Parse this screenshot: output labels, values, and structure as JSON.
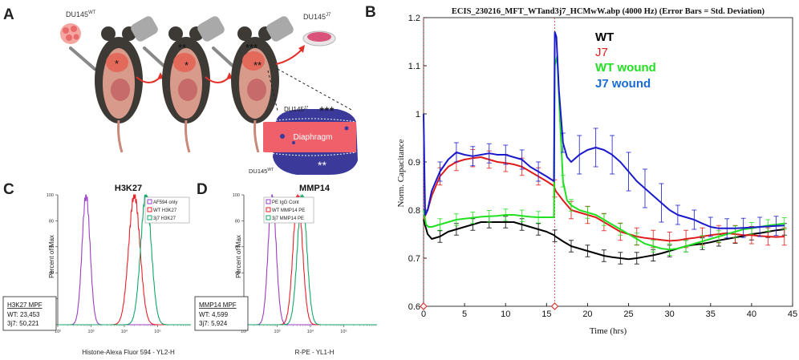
{
  "panels": {
    "a": {
      "letter": "A",
      "label_wt": "DU145",
      "label_wt_sup": "WT",
      "label_j7": "DU145",
      "label_j7_sup": "J7",
      "stars_1": "*",
      "stars_2": "**",
      "stars_2b": "*",
      "stars_3": "***",
      "stars_3b": "**",
      "inset_top_label": "DU145",
      "inset_top_sup": "J7",
      "inset_top_stars": "***",
      "inset_bottom_label": "DU145",
      "inset_bottom_sup": "WT",
      "inset_bottom_stars": "**",
      "inset_diaphragm": "Diaphragm"
    },
    "b": {
      "letter": "B"
    },
    "c": {
      "letter": "C"
    },
    "d": {
      "letter": "D"
    }
  },
  "colors": {
    "wt": "#000000",
    "j7": "#e01b1b",
    "wt_wound": "#22e022",
    "j7_wound": "#1a1acc",
    "c_af594": "#9b3fc4",
    "c_wt": "#e8202a",
    "c_3j7": "#12a86a",
    "arrow": "#e0312a"
  },
  "chart_data": [
    {
      "id": "ecis",
      "type": "line",
      "title": "ECIS_230216_MFT_WTand3j7_HCMwW.abp (4000 Hz) (Error Bars = Std. Deviation)",
      "xlabel": "Time (hrs)",
      "ylabel": "Norm. Capacitance",
      "xlim": [
        0,
        45
      ],
      "ylim": [
        0.6,
        1.2
      ],
      "xticks": [
        0,
        5,
        10,
        15,
        20,
        25,
        30,
        35,
        40,
        45
      ],
      "yticks": [
        0.6,
        0.7,
        0.8,
        0.9,
        1,
        1.1,
        1.2
      ],
      "ytick_labels": [
        "0.6",
        "0.7",
        "0.8",
        "0.9",
        "1",
        "1.1",
        "1.2"
      ],
      "markers_x": [
        0,
        16
      ],
      "legend": [
        "WT",
        "J7",
        "WT wound",
        "J7 wound"
      ],
      "series": [
        {
          "name": "WT",
          "color_key": "wt",
          "x": [
            0,
            0.5,
            1,
            2,
            3,
            4,
            5,
            6,
            7,
            8,
            9,
            10,
            11,
            12,
            13,
            14,
            15,
            15.9,
            16.1,
            17,
            18,
            19,
            20,
            21,
            22,
            23,
            24,
            25,
            26,
            27,
            28,
            29,
            30,
            31,
            32,
            33,
            34,
            35,
            36,
            37,
            38,
            39,
            40,
            41,
            42,
            43,
            44
          ],
          "y": [
            0.78,
            0.75,
            0.74,
            0.745,
            0.755,
            0.76,
            0.765,
            0.77,
            0.775,
            0.775,
            0.775,
            0.775,
            0.775,
            0.77,
            0.765,
            0.76,
            0.755,
            0.748,
            0.745,
            0.735,
            0.725,
            0.72,
            0.715,
            0.71,
            0.705,
            0.702,
            0.7,
            0.698,
            0.7,
            0.703,
            0.706,
            0.71,
            0.715,
            0.72,
            0.725,
            0.728,
            0.73,
            0.733,
            0.737,
            0.74,
            0.743,
            0.746,
            0.75,
            0.752,
            0.755,
            0.758,
            0.76
          ],
          "err_x": [
            2,
            4,
            6,
            8,
            10,
            12,
            14,
            16,
            18,
            20,
            22,
            24,
            26,
            28,
            30,
            32,
            34,
            36,
            38,
            40,
            42,
            44
          ],
          "err": 0.012
        },
        {
          "name": "J7",
          "color_key": "j7",
          "x": [
            0,
            0.5,
            1,
            2,
            3,
            4,
            5,
            6,
            7,
            8,
            9,
            10,
            11,
            12,
            13,
            14,
            15,
            15.9,
            16.1,
            17,
            18,
            19,
            20,
            21,
            22,
            23,
            24,
            25,
            26,
            27,
            28,
            29,
            30,
            31,
            32,
            33,
            34,
            35,
            36,
            37,
            38,
            39,
            40,
            41,
            42,
            43,
            44
          ],
          "y": [
            0.78,
            0.8,
            0.83,
            0.87,
            0.89,
            0.9,
            0.905,
            0.908,
            0.91,
            0.905,
            0.9,
            0.898,
            0.895,
            0.89,
            0.88,
            0.87,
            0.86,
            0.85,
            0.84,
            0.82,
            0.8,
            0.795,
            0.79,
            0.785,
            0.775,
            0.765,
            0.755,
            0.75,
            0.745,
            0.742,
            0.74,
            0.738,
            0.736,
            0.737,
            0.74,
            0.742,
            0.745,
            0.748,
            0.75,
            0.752,
            0.75,
            0.748,
            0.748,
            0.746,
            0.745,
            0.744,
            0.745
          ],
          "err_x": [
            2,
            4,
            6,
            8,
            10,
            12,
            14,
            16,
            18,
            20,
            22,
            24,
            26,
            28,
            30,
            32,
            34,
            36,
            38,
            40,
            42,
            44
          ],
          "err": 0.018
        },
        {
          "name": "WT wound",
          "color_key": "wt_wound",
          "x": [
            0,
            0.3,
            0.6,
            1,
            2,
            3,
            4,
            5,
            6,
            7,
            8,
            9,
            10,
            11,
            12,
            13,
            14,
            15,
            15.9,
            16,
            16.3,
            16.6,
            17,
            17.5,
            18,
            19,
            20,
            21,
            22,
            23,
            24,
            25,
            26,
            27,
            28,
            29,
            30,
            31,
            32,
            33,
            34,
            35,
            36,
            37,
            38,
            39,
            40,
            41,
            42,
            43,
            44
          ],
          "y": [
            0.8,
            0.77,
            0.765,
            0.765,
            0.77,
            0.775,
            0.78,
            0.782,
            0.784,
            0.786,
            0.787,
            0.788,
            0.79,
            0.79,
            0.788,
            0.786,
            0.785,
            0.785,
            0.785,
            1.1,
            1.12,
            1.0,
            0.86,
            0.82,
            0.81,
            0.8,
            0.795,
            0.79,
            0.78,
            0.77,
            0.76,
            0.75,
            0.74,
            0.73,
            0.725,
            0.72,
            0.718,
            0.72,
            0.725,
            0.73,
            0.735,
            0.74,
            0.745,
            0.75,
            0.755,
            0.76,
            0.762,
            0.765,
            0.768,
            0.77,
            0.772
          ],
          "err_x": [
            2,
            4,
            6,
            8,
            10,
            12,
            14,
            17,
            18,
            20,
            22,
            24,
            26,
            28,
            30,
            32,
            34,
            36,
            38,
            40,
            42,
            44
          ],
          "err": 0.012
        },
        {
          "name": "J7 wound",
          "color_key": "j7_wound",
          "x": [
            0,
            0.2,
            0.5,
            1,
            2,
            3,
            4,
            5,
            6,
            7,
            8,
            9,
            10,
            11,
            12,
            13,
            14,
            15,
            15.9,
            16,
            16.2,
            16.5,
            17,
            17.5,
            18,
            19,
            20,
            21,
            22,
            23,
            24,
            25,
            26,
            27,
            28,
            29,
            30,
            31,
            32,
            33,
            34,
            35,
            36,
            37,
            38,
            39,
            40,
            41,
            42,
            43,
            44
          ],
          "y": [
            1.0,
            0.79,
            0.8,
            0.84,
            0.88,
            0.905,
            0.92,
            0.915,
            0.912,
            0.915,
            0.918,
            0.915,
            0.915,
            0.91,
            0.905,
            0.89,
            0.88,
            0.87,
            0.86,
            1.17,
            1.16,
            1.05,
            0.94,
            0.91,
            0.9,
            0.915,
            0.925,
            0.93,
            0.925,
            0.915,
            0.9,
            0.88,
            0.86,
            0.845,
            0.83,
            0.815,
            0.8,
            0.79,
            0.785,
            0.78,
            0.772,
            0.765,
            0.762,
            0.762,
            0.762,
            0.763,
            0.764,
            0.765,
            0.766,
            0.767,
            0.768
          ],
          "err_x": [
            2,
            4,
            6,
            8,
            10,
            12,
            14,
            17,
            19,
            21,
            23,
            25,
            27,
            29,
            31,
            33,
            35,
            37,
            39,
            41,
            43
          ],
          "err": 0.02,
          "err_big_x": [
            19,
            21,
            23,
            25,
            27,
            29
          ],
          "err_big": 0.04
        }
      ]
    },
    {
      "id": "h3k27",
      "type": "line",
      "title": "H3K27",
      "xlabel": "Histone-Alexa Fluor 594 - YL2-H",
      "ylabel": "Percent of Max",
      "xlim": [
        2,
        6
      ],
      "ylim": [
        0,
        100
      ],
      "xtick_labels": [
        "10²",
        "10³",
        "10⁴",
        "10⁵"
      ],
      "xtick_values": [
        2,
        3,
        4,
        5
      ],
      "ytick_labels": [
        "0",
        "20",
        "40",
        "60",
        "80",
        "100"
      ],
      "ytick_values": [
        0,
        20,
        40,
        60,
        80,
        100
      ],
      "legend": [
        "AF594 only",
        "WT H3K27",
        "3j7 H3K27"
      ],
      "peaks": [
        {
          "name": "AF594 only",
          "center": 2.85,
          "width": 0.12,
          "color_key": "c_af594"
        },
        {
          "name": "WT H3K27",
          "center": 4.3,
          "width": 0.17,
          "color_key": "c_wt"
        },
        {
          "name": "3j7 H3K27",
          "center": 4.65,
          "width": 0.16,
          "color_key": "c_3j7"
        }
      ],
      "mpf_title": "H3K27 MPF",
      "mpf_lines": [
        "WT: 23,453",
        "3j7: 50,221"
      ]
    },
    {
      "id": "mmp14",
      "type": "line",
      "title": "MMP14",
      "xlabel": "R-PE - YL1-H",
      "ylabel": "Percent of Max",
      "xlim": [
        2,
        6
      ],
      "ylim": [
        0,
        100
      ],
      "xtick_labels": [
        "10²",
        "10³",
        "10⁴",
        "10⁵"
      ],
      "xtick_values": [
        2,
        3,
        4,
        5
      ],
      "ytick_labels": [
        "0",
        "20",
        "40",
        "60",
        "80",
        "100"
      ],
      "ytick_values": [
        0,
        20,
        40,
        60,
        80,
        100
      ],
      "legend": [
        "PE IgG Cont",
        "WT MMP14 PE",
        "3j7 MMP14 PE"
      ],
      "peaks": [
        {
          "name": "PE IgG Cont",
          "center": 2.85,
          "width": 0.12,
          "color_key": "c_af594"
        },
        {
          "name": "WT MMP14 PE",
          "center": 3.62,
          "width": 0.14,
          "color_key": "c_wt"
        },
        {
          "name": "3j7 MMP14 PE",
          "center": 3.75,
          "width": 0.14,
          "color_key": "c_3j7"
        }
      ],
      "mpf_title": "MMP14 MPF",
      "mpf_lines": [
        "WT: 4,599",
        "3j7: 5,924"
      ]
    }
  ]
}
